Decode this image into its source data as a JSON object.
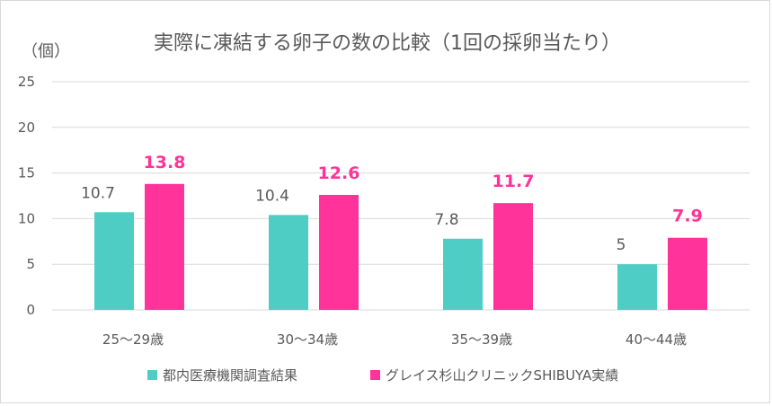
{
  "chart_data": {
    "type": "bar",
    "title": "実際に凍結する卵子の数の比較（1回の採卵当たり）",
    "ylabel": "（個）",
    "xlabel": "",
    "categories": [
      "25～29歳",
      "30～34歳",
      "35～39歳",
      "40～44歳"
    ],
    "series": [
      {
        "name": "都内医療機関調査結果",
        "values": [
          10.7,
          10.4,
          7.8,
          5
        ],
        "labels": [
          "10.7",
          "10.4",
          "7.8",
          "5"
        ],
        "color": "#4ecdc4"
      },
      {
        "name": "グレイス杉山クリニックSHIBUYA実績",
        "values": [
          13.8,
          12.6,
          11.7,
          7.9
        ],
        "labels": [
          "13.8",
          "12.6",
          "11.7",
          "7.9"
        ],
        "color": "#ff3399"
      }
    ],
    "ylim": [
      0,
      25
    ],
    "yticks": [
      0,
      5,
      10,
      15,
      20,
      25
    ],
    "grid": true,
    "legend_position": "bottom"
  }
}
